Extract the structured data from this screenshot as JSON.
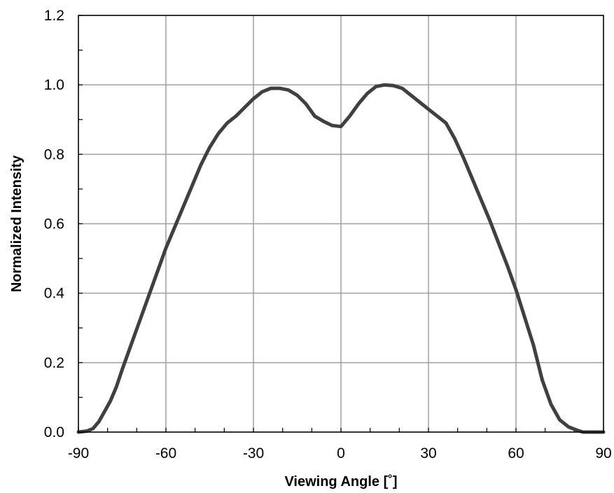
{
  "chart_data": {
    "type": "line",
    "title": "",
    "xlabel": "Viewing Angle [˚]",
    "ylabel": "Normalized Intensity",
    "xlim": [
      -90,
      90
    ],
    "ylim": [
      0,
      1.2
    ],
    "xticks": [
      -90,
      -60,
      -30,
      0,
      30,
      60,
      90
    ],
    "yticks": [
      0.0,
      0.2,
      0.4,
      0.6,
      0.8,
      1.0,
      1.2
    ],
    "xtick_labels": [
      "-90",
      "-60",
      "-30",
      "0",
      "30",
      "60",
      "90"
    ],
    "ytick_labels": [
      "0.0",
      "0.2",
      "0.4",
      "0.6",
      "0.8",
      "1.0",
      "1.2"
    ],
    "grid": true,
    "line_color": "#404040",
    "grid_color": "#a0a0a0",
    "series": [
      {
        "x": [
          -90,
          -87,
          -85,
          -83,
          -81,
          -79,
          -77,
          -75,
          -72,
          -69,
          -66,
          -63,
          -60,
          -57,
          -54,
          -51,
          -48,
          -45,
          -42,
          -39,
          -36,
          -33,
          -30,
          -27,
          -24,
          -21,
          -18,
          -15,
          -12,
          -9,
          -6,
          -3,
          0,
          3,
          6,
          9,
          12,
          15,
          18,
          21,
          24,
          27,
          30,
          33,
          36,
          39,
          42,
          45,
          48,
          51,
          54,
          57,
          60,
          63,
          66,
          69,
          72,
          75,
          78,
          81,
          83,
          85,
          87,
          90
        ],
        "values": [
          0.0,
          0.003,
          0.01,
          0.03,
          0.06,
          0.09,
          0.13,
          0.18,
          0.25,
          0.32,
          0.39,
          0.46,
          0.53,
          0.59,
          0.65,
          0.71,
          0.77,
          0.82,
          0.86,
          0.89,
          0.91,
          0.935,
          0.96,
          0.98,
          0.99,
          0.99,
          0.985,
          0.97,
          0.945,
          0.91,
          0.895,
          0.883,
          0.88,
          0.91,
          0.945,
          0.975,
          0.995,
          1.0,
          0.998,
          0.99,
          0.97,
          0.95,
          0.93,
          0.91,
          0.89,
          0.845,
          0.79,
          0.73,
          0.67,
          0.61,
          0.545,
          0.48,
          0.41,
          0.33,
          0.25,
          0.15,
          0.08,
          0.035,
          0.015,
          0.005,
          0.0,
          0.0,
          0.0,
          0.0
        ]
      }
    ]
  }
}
